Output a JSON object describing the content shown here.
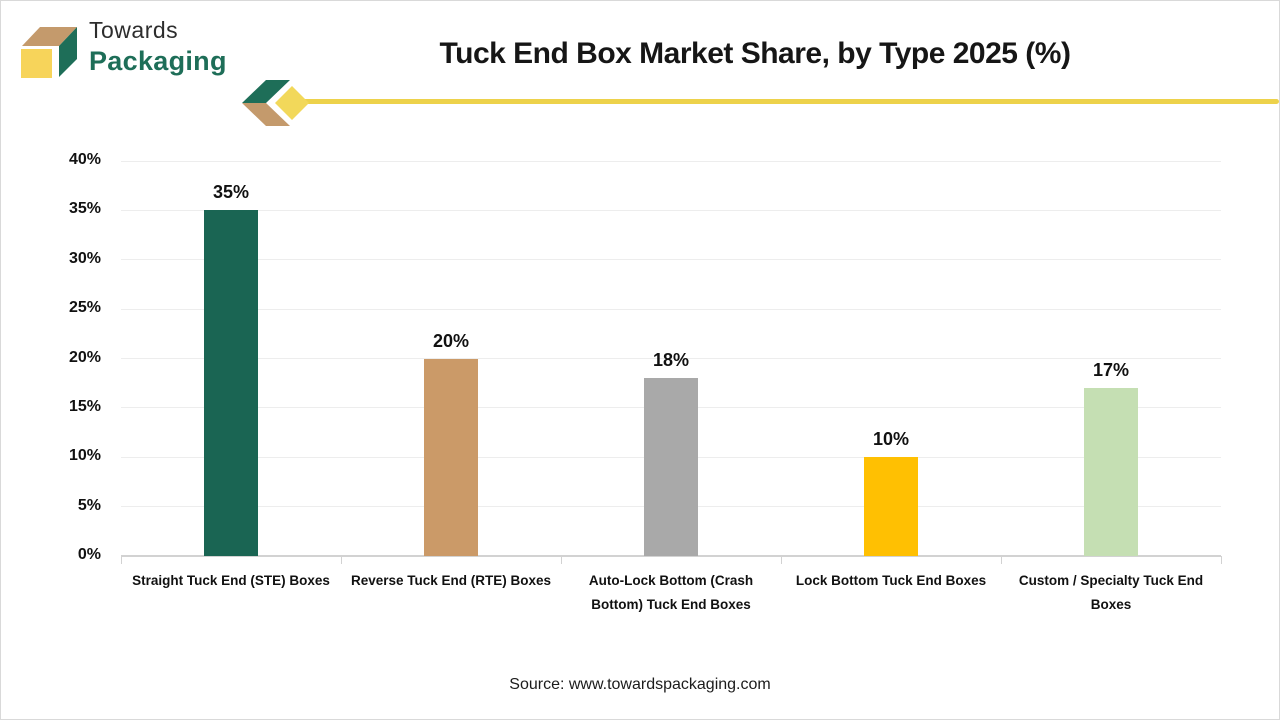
{
  "logo": {
    "line1": "Towards",
    "line2": "Packaging"
  },
  "header": {
    "title": "Tuck End Box Market Share, by Type 2025 (%)"
  },
  "footer": {
    "source": "Source: www.towardspackaging.com"
  },
  "colors": {
    "logo_green": "#1e6e58",
    "logo_tan": "#c49a6c",
    "logo_yellow": "#f7d45a",
    "divider_yellow": "#edd24b",
    "title_text": "#161616",
    "gridline": "#ededed",
    "axis_line": "#d2d2d2"
  },
  "chart_data": {
    "type": "bar",
    "title": "Tuck End Box Market Share, by Type 2025 (%)",
    "categories": [
      "Straight Tuck End (STE) Boxes",
      "Reverse Tuck End (RTE) Boxes",
      "Auto-Lock Bottom (Crash Bottom) Tuck End Boxes",
      "Lock Bottom Tuck End Boxes",
      "Custom / Specialty Tuck End Boxes"
    ],
    "values": [
      35,
      20,
      18,
      10,
      17
    ],
    "value_labels": [
      "35%",
      "20%",
      "18%",
      "10%",
      "17%"
    ],
    "bar_colors": [
      "#1a6553",
      "#cb9a68",
      "#a9a9a9",
      "#ffc002",
      "#c5dfb3"
    ],
    "xlabel": "",
    "ylabel": "",
    "ylim": [
      0,
      40
    ],
    "y_tick_step": 5,
    "y_tick_labels": [
      "0%",
      "5%",
      "10%",
      "15%",
      "20%",
      "25%",
      "30%",
      "35%",
      "40%"
    ],
    "grid": true,
    "legend_position": "none"
  }
}
